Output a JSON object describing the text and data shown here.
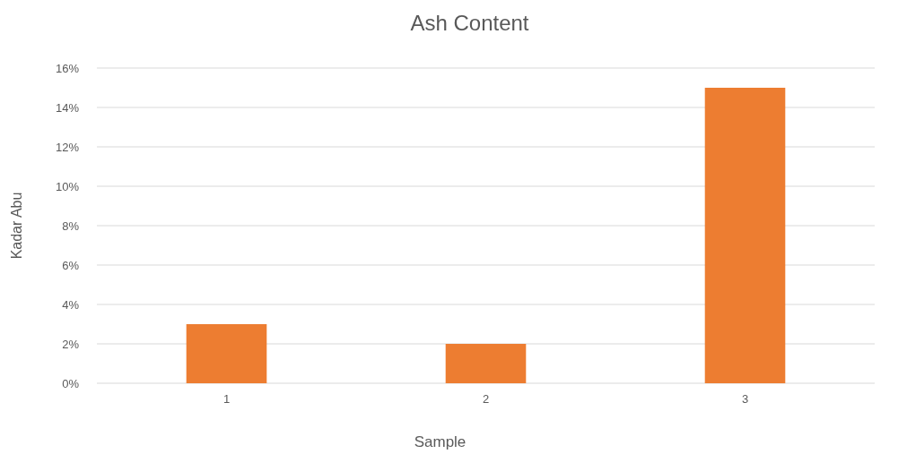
{
  "chart_data": {
    "type": "bar",
    "title": "Ash Content",
    "xlabel": "Sample",
    "ylabel": "Kadar Abu",
    "categories": [
      "1",
      "2",
      "3"
    ],
    "values": [
      3,
      2,
      15
    ],
    "color": "#ed7d31",
    "ylim": [
      0,
      16
    ],
    "yticks": [
      {
        "value": 0,
        "label": "0%"
      },
      {
        "value": 2,
        "label": "2%"
      },
      {
        "value": 4,
        "label": "4%"
      },
      {
        "value": 6,
        "label": "6%"
      },
      {
        "value": 8,
        "label": "8%"
      },
      {
        "value": 10,
        "label": "10%"
      },
      {
        "value": 12,
        "label": "12%"
      },
      {
        "value": 14,
        "label": "14%"
      },
      {
        "value": 16,
        "label": "16%"
      }
    ],
    "grid": "y"
  }
}
